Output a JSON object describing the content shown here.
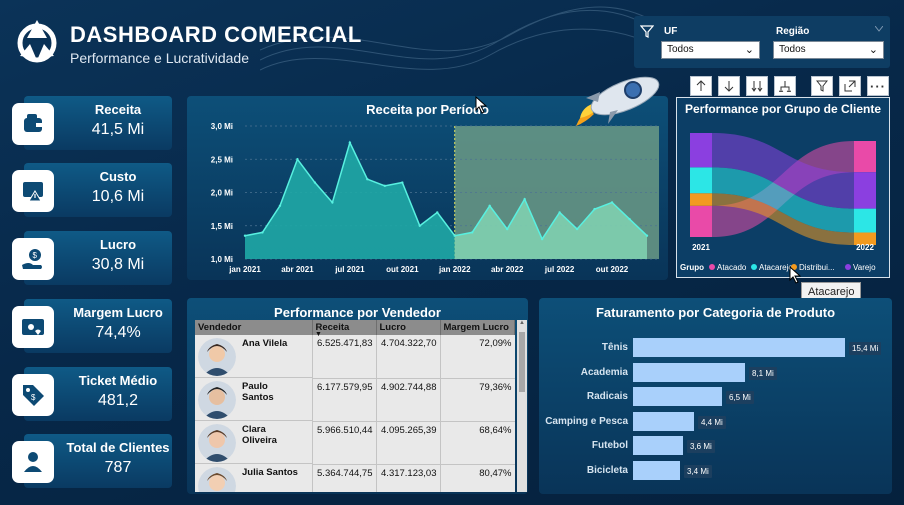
{
  "header": {
    "title": "DASHBOARD COMERCIAL",
    "subtitle": "Performance e Lucratividade"
  },
  "kpis": [
    {
      "label": "Receita",
      "value": "41,5 Mi",
      "icon": "wallet-icon"
    },
    {
      "label": "Custo",
      "value": "10,6 Mi",
      "icon": "cost-warning-icon"
    },
    {
      "label": "Lucro",
      "value": "30,8 Mi",
      "icon": "money-hand-icon"
    },
    {
      "label": "Margem Lucro",
      "value": "74,4%",
      "icon": "margin-card-icon"
    },
    {
      "label": "Ticket Médio",
      "value": "481,2",
      "icon": "price-tag-icon"
    },
    {
      "label": "Total de Clientes",
      "value": "787",
      "icon": "client-icon"
    }
  ],
  "filters": {
    "uf_label": "UF",
    "uf_value": "Todos",
    "regiao_label": "Região",
    "regiao_value": "Todos"
  },
  "toolbar": [
    "arrow-up-icon",
    "arrow-down-icon",
    "double-arrow-down-icon",
    "expand-hierarchy-icon",
    "filter-icon",
    "focus-mode-icon",
    "more-options-icon"
  ],
  "receita_chart": {
    "title": "Receita por Período",
    "y_ticks": [
      "3,0 Mi",
      "2,5 Mi",
      "2,0 Mi",
      "1,5 Mi",
      "1,0 Mi"
    ],
    "x_ticks": [
      "jan 2021",
      "abr 2021",
      "jul 2021",
      "out 2021",
      "jan 2022",
      "abr 2022",
      "jul 2022",
      "out 2022"
    ]
  },
  "chart_data": {
    "type": "area",
    "title": "Receita por Período",
    "x": [
      "jan 2021",
      "fev 2021",
      "mar 2021",
      "abr 2021",
      "mai 2021",
      "jun 2021",
      "jul 2021",
      "ago 2021",
      "set 2021",
      "out 2021",
      "nov 2021",
      "dez 2021",
      "jan 2022",
      "fev 2022",
      "mar 2022",
      "abr 2022",
      "mai 2022",
      "jun 2022",
      "jul 2022",
      "ago 2022",
      "set 2022",
      "out 2022",
      "nov 2022",
      "dez 2022"
    ],
    "values": [
      1.35,
      1.4,
      1.8,
      2.5,
      2.15,
      1.85,
      2.75,
      2.2,
      2.1,
      2.15,
      1.5,
      1.7,
      1.35,
      1.4,
      1.8,
      1.45,
      1.9,
      1.3,
      1.7,
      1.45,
      1.75,
      1.85,
      1.6,
      1.35
    ],
    "ylim": [
      1.0,
      3.0
    ],
    "grid": true,
    "highlight_range": [
      "jan 2022",
      "dez 2022"
    ],
    "colors": {
      "area_2021": "#1fa9a6",
      "area_2022": "#7fcfaf",
      "line": "#58f0e0",
      "highlight_bg": "#6b9a86"
    }
  },
  "sankey": {
    "title": "Performance por Grupo de Cliente",
    "year_left": "2021",
    "year_right": "2022",
    "legend_title": "Grupo",
    "groups": [
      {
        "name": "Atacado",
        "color": "#e94aa8",
        "v2021": 0.3,
        "v2022": 0.3
      },
      {
        "name": "Atacarejo",
        "color": "#2ce6e6",
        "v2021": 0.25,
        "v2022": 0.23
      },
      {
        "name": "Distribui...",
        "color": "#f39a1f",
        "v2021": 0.12,
        "v2022": 0.12
      },
      {
        "name": "Varejo",
        "color": "#8b3fe0",
        "v2021": 0.33,
        "v2022": 0.35
      }
    ]
  },
  "tooltip": "Atacarejo",
  "vendedores": {
    "title": "Performance por Vendedor",
    "columns": [
      "Vendedor",
      "Receita",
      "Lucro",
      "Margem Lucro"
    ],
    "rows": [
      {
        "nome": "Ana Vilela",
        "receita": "6.525.471,83",
        "lucro": "4.704.322,70",
        "margem": "72,09%"
      },
      {
        "nome": "Paulo Santos",
        "receita": "6.177.579,95",
        "lucro": "4.902.744,88",
        "margem": "79,36%"
      },
      {
        "nome": "Clara Oliveira",
        "receita": "5.966.510,44",
        "lucro": "4.095.265,39",
        "margem": "68,64%"
      },
      {
        "nome": "Julia Santos",
        "receita": "5.364.744,75",
        "lucro": "4.317.123,03",
        "margem": "80,47%"
      }
    ]
  },
  "categorias": {
    "title": "Faturamento por Categoria de Produto",
    "items": [
      {
        "name": "Tênis",
        "value": 15.4,
        "label": "15,4 Mi"
      },
      {
        "name": "Academia",
        "value": 8.1,
        "label": "8,1 Mi"
      },
      {
        "name": "Radicais",
        "value": 6.5,
        "label": "6,5 Mi"
      },
      {
        "name": "Camping e Pesca",
        "value": 4.4,
        "label": "4,4 Mi"
      },
      {
        "name": "Futebol",
        "value": 3.6,
        "label": "3,6 Mi"
      },
      {
        "name": "Bicicleta",
        "value": 3.4,
        "label": "3,4 Mi"
      }
    ]
  }
}
